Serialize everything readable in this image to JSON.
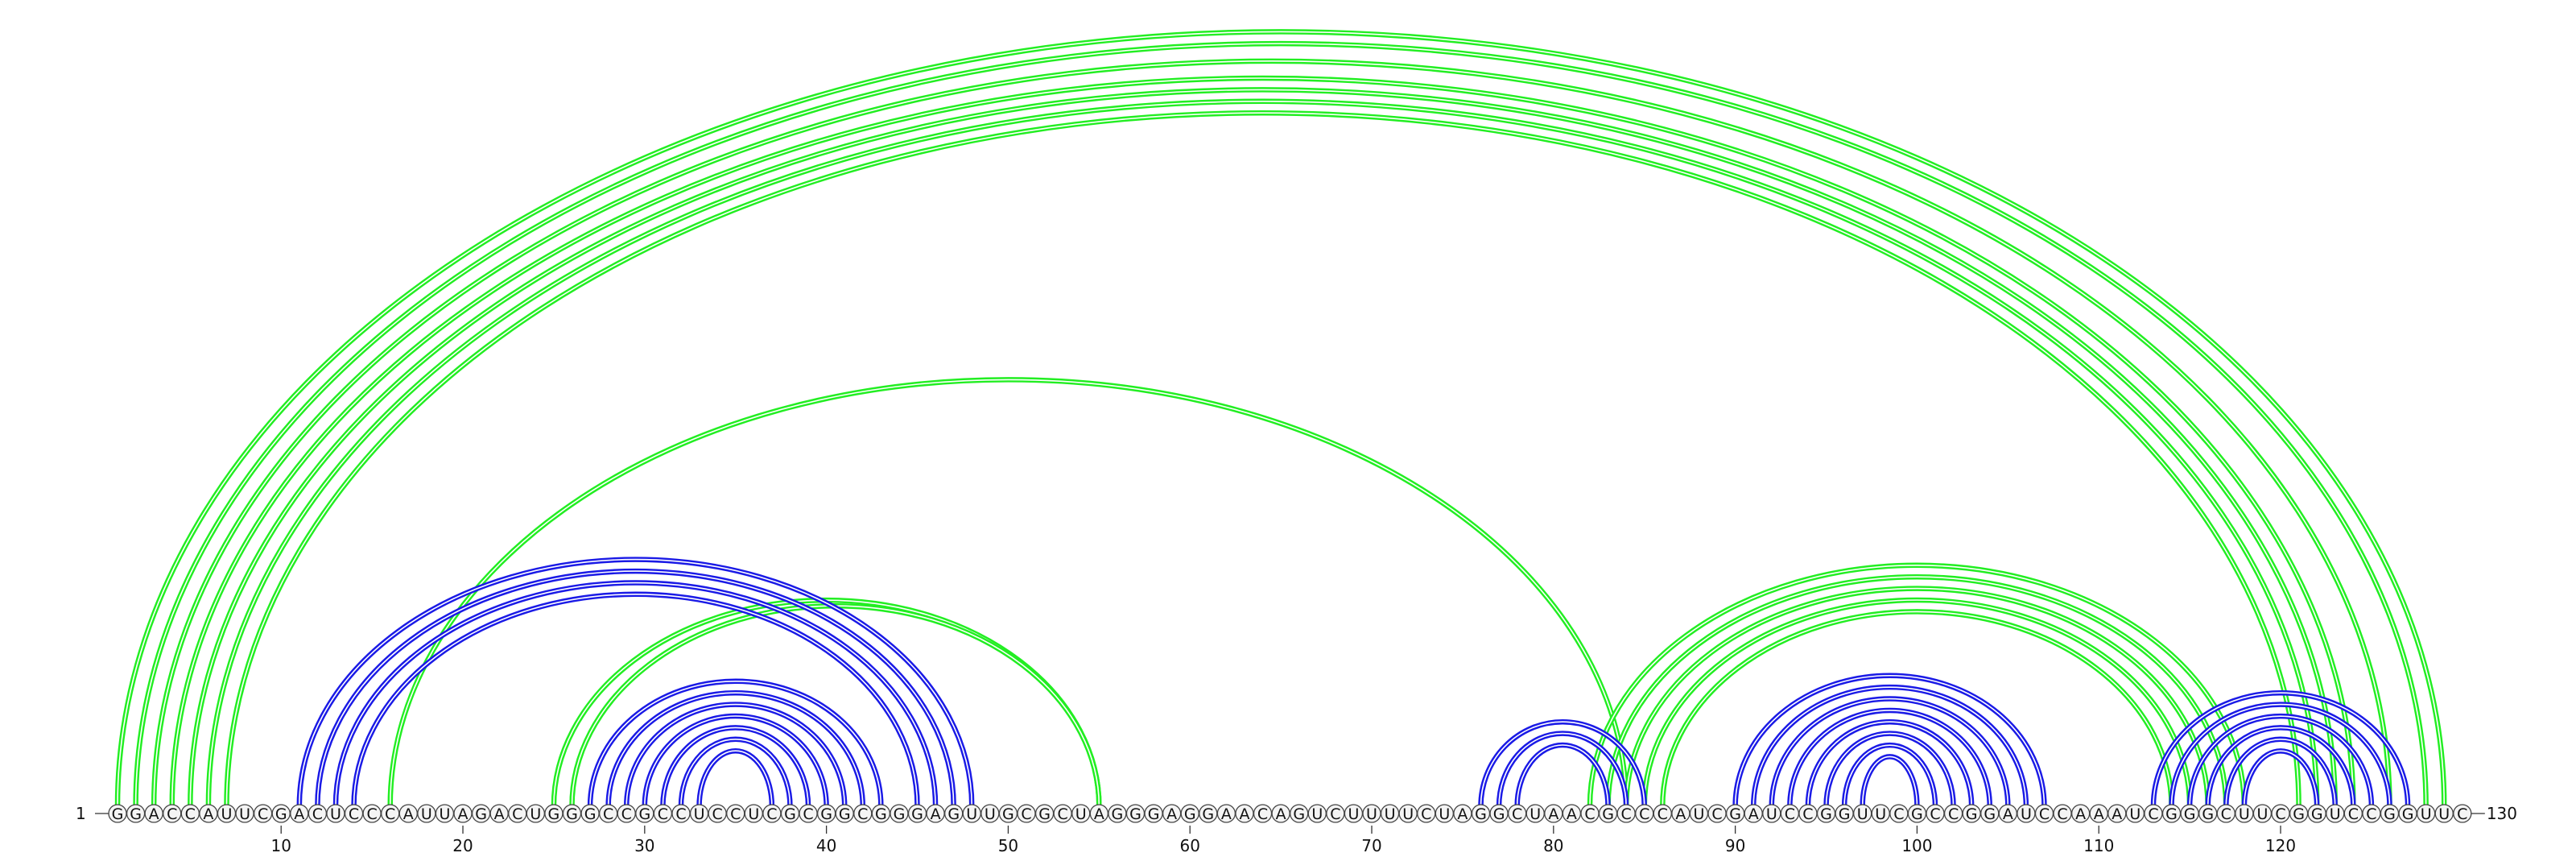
{
  "diagram": {
    "sequence": "GGACCAUUCGACUCCCAUUAGACUGGGCCGCCUCCUCGCGGCGGGAGUUGCGCUAGGGAGGAACAGUCUUUUCUAGGCUAACGCCCAUCGAUCCGGUUCGCCGGAUCCAAAUCGGGCUUCGGUCCGGUUC",
    "start_label": "1",
    "end_label": "130",
    "ticks": [
      {
        "pos": 10,
        "label": "10"
      },
      {
        "pos": 20,
        "label": "20"
      },
      {
        "pos": 30,
        "label": "30"
      },
      {
        "pos": 40,
        "label": "40"
      },
      {
        "pos": 50,
        "label": "50"
      },
      {
        "pos": 60,
        "label": "60"
      },
      {
        "pos": 70,
        "label": "70"
      },
      {
        "pos": 80,
        "label": "80"
      },
      {
        "pos": 90,
        "label": "90"
      },
      {
        "pos": 100,
        "label": "100"
      },
      {
        "pos": 110,
        "label": "110"
      },
      {
        "pos": 120,
        "label": "120"
      }
    ],
    "colors": {
      "blue_pairs": "#1a1ae6",
      "green_pairs": "#22ee22",
      "backbone": "#555555",
      "nucleotide_fill": "#f4f4f4"
    },
    "blue_pairs": [
      [
        11,
        48
      ],
      [
        12,
        47
      ],
      [
        13,
        46
      ],
      [
        14,
        45
      ],
      [
        27,
        43
      ],
      [
        28,
        42
      ],
      [
        29,
        41
      ],
      [
        30,
        40
      ],
      [
        31,
        39
      ],
      [
        32,
        38
      ],
      [
        33,
        37
      ],
      [
        76,
        85
      ],
      [
        77,
        84
      ],
      [
        78,
        83
      ],
      [
        90,
        107
      ],
      [
        91,
        106
      ],
      [
        92,
        105
      ],
      [
        93,
        104
      ],
      [
        94,
        103
      ],
      [
        95,
        102
      ],
      [
        96,
        101
      ],
      [
        97,
        100
      ],
      [
        113,
        127
      ],
      [
        114,
        126
      ],
      [
        115,
        125
      ],
      [
        116,
        124
      ],
      [
        117,
        123
      ],
      [
        118,
        122
      ]
    ],
    "green_pairs": [
      [
        1,
        129
      ],
      [
        2,
        128
      ],
      [
        3,
        126
      ],
      [
        4,
        124
      ],
      [
        5,
        123
      ],
      [
        6,
        122
      ],
      [
        7,
        121
      ],
      [
        16,
        84
      ],
      [
        25,
        55
      ],
      [
        26,
        55
      ],
      [
        82,
        118
      ],
      [
        83,
        117
      ],
      [
        84,
        116
      ],
      [
        85,
        115
      ],
      [
        86,
        114
      ]
    ]
  }
}
